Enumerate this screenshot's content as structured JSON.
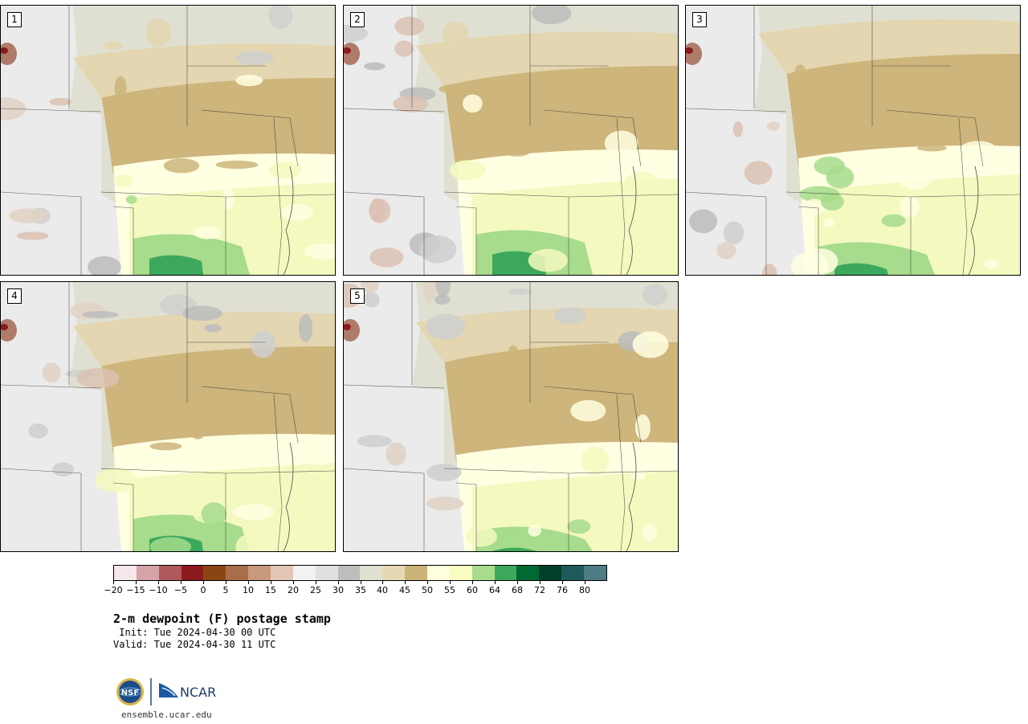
{
  "panels": [
    {
      "label": "1"
    },
    {
      "label": "2"
    },
    {
      "label": "3"
    },
    {
      "label": "4"
    },
    {
      "label": "5"
    }
  ],
  "colorbar": {
    "colors": [
      "#f6e8ea",
      "#d4a4a8",
      "#b0585c",
      "#8b1a1e",
      "#8b4513",
      "#a86d4a",
      "#c79a7e",
      "#e3c6b3",
      "#f2f2f2",
      "#e0e0e0",
      "#bdbdbd",
      "#e0e0d2",
      "#e5d8b2",
      "#ccb478",
      "#ffffe0",
      "#f8fcc0",
      "#a8dc8c",
      "#3ca85c",
      "#006a32",
      "#00402a",
      "#1e5a5a",
      "#4e7c84"
    ],
    "tick_labels": [
      "−20",
      "−15",
      "−10",
      "−5",
      "0",
      "5",
      "10",
      "15",
      "20",
      "25",
      "30",
      "35",
      "40",
      "45",
      "50",
      "55",
      "60",
      "64",
      "68",
      "72",
      "76",
      "80"
    ]
  },
  "title": "2-m dewpoint (F) postage stamp",
  "init_text": " Init: Tue 2024-04-30 00 UTC",
  "valid_text": "Valid: Tue 2024-04-30 11 UTC",
  "logo": {
    "nsf": "NSF",
    "ncar": "NCAR"
  },
  "footer_url": "ensemble.ucar.edu"
}
